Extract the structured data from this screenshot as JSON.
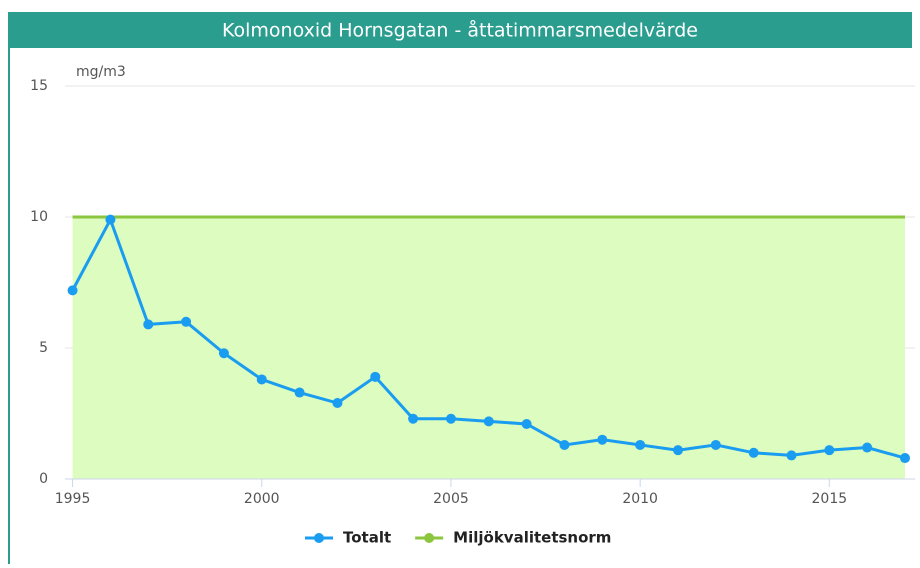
{
  "chart_data": {
    "type": "line",
    "title": "Kolmonoxid Hornsgatan - åttatimmarsmedelvärde",
    "y_label": "mg/m3",
    "x": [
      1995,
      1996,
      1997,
      1998,
      1999,
      2000,
      2001,
      2002,
      2003,
      2004,
      2005,
      2006,
      2007,
      2008,
      2009,
      2010,
      2011,
      2012,
      2013,
      2014,
      2015,
      2016,
      2017
    ],
    "series": [
      {
        "name": "Totalt",
        "color": "#1a9cf0",
        "values": [
          7.2,
          9.9,
          5.9,
          6.0,
          4.8,
          3.8,
          3.3,
          2.9,
          3.9,
          2.3,
          2.3,
          2.2,
          2.1,
          1.3,
          1.5,
          1.3,
          1.1,
          1.3,
          1.0,
          0.9,
          1.1,
          1.2,
          0.8
        ]
      },
      {
        "name": "Miljökvalitetsnorm",
        "color": "#8cc63f",
        "fill": "#dcfcc0",
        "values": [
          10,
          10,
          10,
          10,
          10,
          10,
          10,
          10,
          10,
          10,
          10,
          10,
          10,
          10,
          10,
          10,
          10,
          10,
          10,
          10,
          10,
          10,
          10
        ]
      }
    ],
    "xlim": [
      1994.8,
      2017
    ],
    "ylim": [
      0,
      15
    ],
    "xticks": [
      1995,
      2000,
      2005,
      2010,
      2015
    ],
    "yticks": [
      0,
      5,
      10,
      15
    ],
    "grid": true
  }
}
